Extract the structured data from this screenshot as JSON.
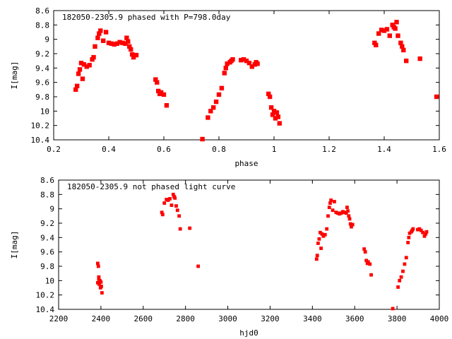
{
  "chart_data": [
    {
      "type": "scatter",
      "title": "182050-2305.9 phased with P=798.0day",
      "xlabel": "phase",
      "ylabel": "I[mag]",
      "xlim": [
        0.2,
        1.6
      ],
      "ylim": [
        8.6,
        10.4
      ],
      "y_inverted": true,
      "xticks": [
        "0.2",
        "0.4",
        "0.6",
        "0.8",
        "1",
        "1.2",
        "1.4",
        "1.6"
      ],
      "yticks": [
        "8.6",
        "8.8",
        "9",
        "9.2",
        "9.4",
        "9.6",
        "9.8",
        "10",
        "10.2",
        "10.4"
      ],
      "marker_color": "#ff0000",
      "points": [
        [
          0.28,
          9.7
        ],
        [
          0.285,
          9.65
        ],
        [
          0.29,
          9.48
        ],
        [
          0.295,
          9.42
        ],
        [
          0.3,
          9.33
        ],
        [
          0.305,
          9.55
        ],
        [
          0.31,
          9.35
        ],
        [
          0.32,
          9.38
        ],
        [
          0.33,
          9.36
        ],
        [
          0.34,
          9.28
        ],
        [
          0.345,
          9.25
        ],
        [
          0.35,
          9.1
        ],
        [
          0.36,
          8.98
        ],
        [
          0.365,
          8.92
        ],
        [
          0.37,
          8.88
        ],
        [
          0.38,
          9.02
        ],
        [
          0.39,
          8.9
        ],
        [
          0.4,
          9.05
        ],
        [
          0.41,
          9.06
        ],
        [
          0.42,
          9.07
        ],
        [
          0.43,
          9.06
        ],
        [
          0.44,
          9.04
        ],
        [
          0.45,
          9.05
        ],
        [
          0.46,
          9.06
        ],
        [
          0.465,
          8.98
        ],
        [
          0.47,
          9.03
        ],
        [
          0.475,
          9.1
        ],
        [
          0.48,
          9.14
        ],
        [
          0.485,
          9.21
        ],
        [
          0.49,
          9.25
        ],
        [
          0.5,
          9.22
        ],
        [
          0.57,
          9.56
        ],
        [
          0.575,
          9.6
        ],
        [
          0.58,
          9.72
        ],
        [
          0.585,
          9.76
        ],
        [
          0.59,
          9.74
        ],
        [
          0.6,
          9.77
        ],
        [
          0.61,
          9.92
        ],
        [
          0.74,
          10.39
        ],
        [
          0.76,
          10.09
        ],
        [
          0.77,
          10.0
        ],
        [
          0.78,
          9.95
        ],
        [
          0.79,
          9.87
        ],
        [
          0.8,
          9.77
        ],
        [
          0.81,
          9.68
        ],
        [
          0.82,
          9.47
        ],
        [
          0.825,
          9.4
        ],
        [
          0.83,
          9.34
        ],
        [
          0.84,
          9.32
        ],
        [
          0.845,
          9.3
        ],
        [
          0.85,
          9.28
        ],
        [
          0.88,
          9.29
        ],
        [
          0.89,
          9.28
        ],
        [
          0.9,
          9.3
        ],
        [
          0.91,
          9.33
        ],
        [
          0.92,
          9.38
        ],
        [
          0.93,
          9.35
        ],
        [
          0.935,
          9.32
        ],
        [
          0.94,
          9.34
        ],
        [
          0.98,
          9.76
        ],
        [
          0.985,
          9.8
        ],
        [
          0.99,
          9.95
        ],
        [
          0.995,
          10.05
        ],
        [
          1.0,
          10.0
        ],
        [
          1.005,
          10.1
        ],
        [
          1.01,
          10.02
        ],
        [
          1.015,
          10.08
        ],
        [
          1.02,
          10.17
        ],
        [
          1.365,
          9.05
        ],
        [
          1.37,
          9.08
        ],
        [
          1.38,
          8.92
        ],
        [
          1.39,
          8.87
        ],
        [
          1.4,
          8.88
        ],
        [
          1.41,
          8.86
        ],
        [
          1.42,
          8.95
        ],
        [
          1.43,
          8.8
        ],
        [
          1.435,
          8.83
        ],
        [
          1.44,
          8.85
        ],
        [
          1.445,
          8.76
        ],
        [
          1.45,
          8.95
        ],
        [
          1.46,
          9.05
        ],
        [
          1.465,
          9.1
        ],
        [
          1.47,
          9.15
        ],
        [
          1.48,
          9.3
        ],
        [
          1.53,
          9.27
        ],
        [
          1.59,
          9.8
        ]
      ]
    },
    {
      "type": "scatter",
      "title": "182050-2305.9 not phased light curve",
      "xlabel": "hjd0",
      "ylabel": "I[mag]",
      "xlim": [
        2200,
        4000
      ],
      "ylim": [
        8.6,
        10.4
      ],
      "y_inverted": true,
      "xticks": [
        "2200",
        "2400",
        "2600",
        "2800",
        "3000",
        "3200",
        "3400",
        "3600",
        "3800",
        "4000"
      ],
      "yticks": [
        "8.6",
        "8.8",
        "9",
        "9.2",
        "9.4",
        "9.6",
        "9.8",
        "10",
        "10.2",
        "10.4"
      ],
      "marker_color": "#ff0000",
      "points": [
        [
          2385,
          9.76
        ],
        [
          2388,
          9.8
        ],
        [
          2390,
          9.95
        ],
        [
          2392,
          10.05
        ],
        [
          2395,
          10.0
        ],
        [
          2398,
          10.1
        ],
        [
          2400,
          10.02
        ],
        [
          2402,
          10.08
        ],
        [
          2405,
          10.17
        ],
        [
          2385,
          10.03
        ],
        [
          2390,
          9.98
        ],
        [
          2688,
          9.05
        ],
        [
          2692,
          9.08
        ],
        [
          2700,
          8.92
        ],
        [
          2710,
          8.87
        ],
        [
          2718,
          8.88
        ],
        [
          2726,
          8.86
        ],
        [
          2734,
          8.95
        ],
        [
          2742,
          8.8
        ],
        [
          2746,
          8.83
        ],
        [
          2750,
          8.85
        ],
        [
          2756,
          8.96
        ],
        [
          2762,
          9.02
        ],
        [
          2770,
          9.1
        ],
        [
          2775,
          9.28
        ],
        [
          2820,
          9.27
        ],
        [
          2860,
          9.8
        ],
        [
          3420,
          9.7
        ],
        [
          3423,
          9.65
        ],
        [
          3427,
          9.48
        ],
        [
          3432,
          9.42
        ],
        [
          3437,
          9.33
        ],
        [
          3441,
          9.55
        ],
        [
          3445,
          9.35
        ],
        [
          3452,
          9.38
        ],
        [
          3460,
          9.36
        ],
        [
          3468,
          9.28
        ],
        [
          3474,
          9.1
        ],
        [
          3480,
          8.98
        ],
        [
          3484,
          8.92
        ],
        [
          3488,
          8.88
        ],
        [
          3496,
          9.02
        ],
        [
          3504,
          8.9
        ],
        [
          3512,
          9.05
        ],
        [
          3520,
          9.06
        ],
        [
          3528,
          9.07
        ],
        [
          3536,
          9.06
        ],
        [
          3544,
          9.04
        ],
        [
          3552,
          9.05
        ],
        [
          3560,
          9.06
        ],
        [
          3564,
          8.98
        ],
        [
          3568,
          9.03
        ],
        [
          3572,
          9.1
        ],
        [
          3576,
          9.14
        ],
        [
          3580,
          9.21
        ],
        [
          3584,
          9.25
        ],
        [
          3590,
          9.22
        ],
        [
          3645,
          9.56
        ],
        [
          3650,
          9.6
        ],
        [
          3655,
          9.72
        ],
        [
          3660,
          9.76
        ],
        [
          3664,
          9.74
        ],
        [
          3672,
          9.77
        ],
        [
          3678,
          9.92
        ],
        [
          3780,
          10.39
        ],
        [
          3805,
          10.09
        ],
        [
          3812,
          10.0
        ],
        [
          3820,
          9.95
        ],
        [
          3828,
          9.87
        ],
        [
          3836,
          9.77
        ],
        [
          3844,
          9.68
        ],
        [
          3852,
          9.47
        ],
        [
          3856,
          9.4
        ],
        [
          3860,
          9.34
        ],
        [
          3868,
          9.32
        ],
        [
          3872,
          9.3
        ],
        [
          3876,
          9.28
        ],
        [
          3898,
          9.29
        ],
        [
          3906,
          9.28
        ],
        [
          3914,
          9.3
        ],
        [
          3922,
          9.33
        ],
        [
          3930,
          9.38
        ],
        [
          3936,
          9.35
        ],
        [
          3940,
          9.32
        ]
      ]
    }
  ]
}
